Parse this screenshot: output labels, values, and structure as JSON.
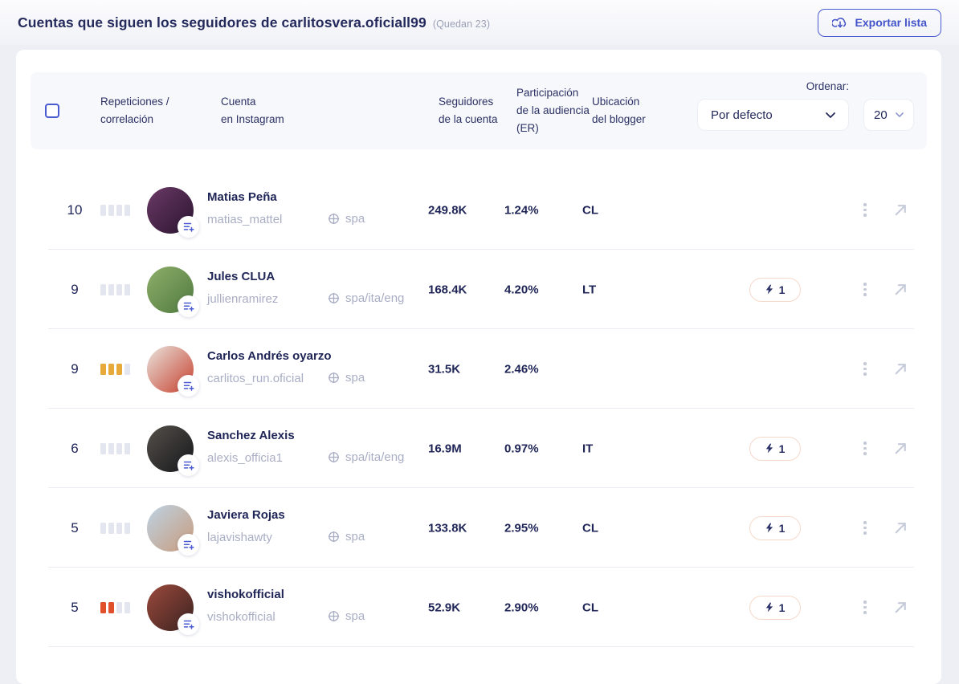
{
  "header": {
    "title": "Cuentas que siguen los seguidores de carlitosvera.oficiall99",
    "remaining": "(Quedan 23)",
    "export_label": "Exportar lista"
  },
  "table_header": {
    "repetitions_l1": "Repeticiones /",
    "repetitions_l2": "correlación",
    "account_l1": "Cuenta",
    "account_l2": "en Instagram",
    "followers_l1": "Seguidores",
    "followers_l2": "de la cuenta",
    "engagement_l1": "Participación",
    "engagement_l2": "de la audiencia",
    "engagement_l3": "(ER)",
    "location_l1": "Ubicación",
    "location_l2": "del blogger",
    "sort_label": "Ordenar:",
    "sort_selected": "Por defecto",
    "page_size_selected": "20"
  },
  "rows": [
    {
      "rank": "10",
      "bars": [
        "gray",
        "gray",
        "gray",
        "gray"
      ],
      "name": "Matias Peña",
      "username": "matias_mattel",
      "language": "spa",
      "followers": "249.8K",
      "engagement": "1.24%",
      "location": "CL",
      "boost": null,
      "avatar": [
        "#6b3a66",
        "#2a1430"
      ]
    },
    {
      "rank": "9",
      "bars": [
        "gray",
        "gray",
        "gray",
        "gray"
      ],
      "name": "Jules CLUA",
      "username": "jullienramirez",
      "language": "spa/ita/eng",
      "followers": "168.4K",
      "engagement": "4.20%",
      "location": "LT",
      "boost": "1",
      "avatar": [
        "#8fae6a",
        "#4f7a3f"
      ]
    },
    {
      "rank": "9",
      "bars": [
        "orange",
        "orange",
        "orange",
        "gray"
      ],
      "name": "Carlos Andrés oyarzo",
      "username": "carlitos_run.oficial",
      "language": "spa",
      "followers": "31.5K",
      "engagement": "2.46%",
      "location": "",
      "boost": null,
      "avatar": [
        "#e9e4dd",
        "#c7402e"
      ]
    },
    {
      "rank": "6",
      "bars": [
        "gray",
        "gray",
        "gray",
        "gray"
      ],
      "name": "Sanchez Alexis",
      "username": "alexis_officia1",
      "language": "spa/ita/eng",
      "followers": "16.9M",
      "engagement": "0.97%",
      "location": "IT",
      "boost": "1",
      "avatar": [
        "#55504a",
        "#16171b"
      ]
    },
    {
      "rank": "5",
      "bars": [
        "gray",
        "gray",
        "gray",
        "gray"
      ],
      "name": "Javiera Rojas",
      "username": "lajavishawty",
      "language": "spa",
      "followers": "133.8K",
      "engagement": "2.95%",
      "location": "CL",
      "boost": "1",
      "avatar": [
        "#bdd3e4",
        "#c89b7c"
      ]
    },
    {
      "rank": "5",
      "bars": [
        "red",
        "red",
        "gray",
        "gray"
      ],
      "name": "vishokofficial",
      "username": "vishokofficial",
      "language": "spa",
      "followers": "52.9K",
      "engagement": "2.90%",
      "location": "CL",
      "boost": "1",
      "avatar": [
        "#9c4a3c",
        "#3a2220"
      ]
    }
  ],
  "colors": {
    "accent": "#4353c9",
    "navy": "#242a5c",
    "bar_palette": {
      "gray": "#e3e6ee",
      "orange": "#e7a93a",
      "red": "#e0512b"
    },
    "boost_border": "#f6d9ca"
  }
}
